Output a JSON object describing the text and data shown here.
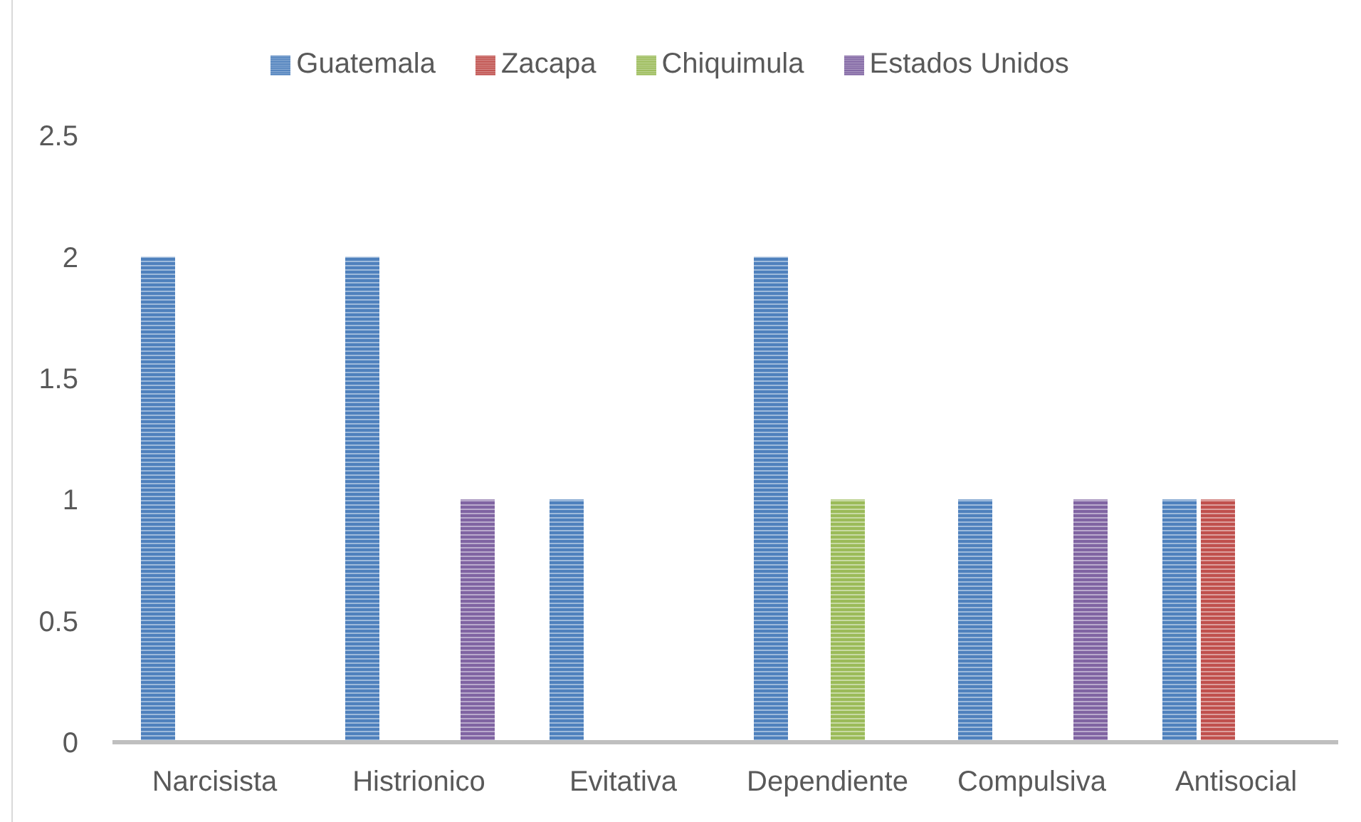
{
  "chart_data": {
    "type": "bar",
    "categories": [
      "Narcisista",
      "Histrionico",
      "Evitativa",
      "Dependiente",
      "Compulsiva",
      "Antisocial"
    ],
    "series": [
      {
        "name": "Guatemala",
        "color": "#4f81bd",
        "values": [
          2,
          2,
          1,
          2,
          1,
          1
        ]
      },
      {
        "name": "Zacapa",
        "color": "#c0504d",
        "values": [
          null,
          null,
          null,
          null,
          null,
          1
        ]
      },
      {
        "name": "Chiquimula",
        "color": "#9bbb59",
        "values": [
          null,
          null,
          null,
          1,
          null,
          null
        ]
      },
      {
        "name": "Estados Unidos",
        "color": "#8064a2",
        "values": [
          null,
          1,
          null,
          null,
          1,
          null
        ]
      }
    ],
    "ylim": [
      0,
      2.5
    ],
    "yticks": [
      0,
      0.5,
      1,
      1.5,
      2,
      2.5
    ],
    "legend": "top"
  }
}
